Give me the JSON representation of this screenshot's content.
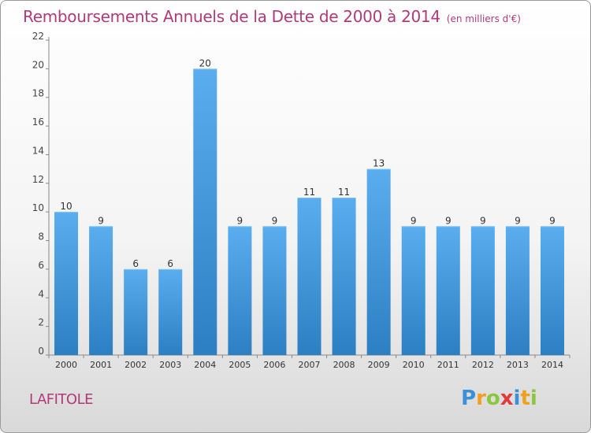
{
  "title": "Remboursements Annuels de la Dette de 2000 à 2014",
  "unit": "(en milliers d'€)",
  "town": "LAFITOLE",
  "logo": {
    "letters": [
      "P",
      "r",
      "o",
      "x",
      "i",
      "t",
      "i"
    ],
    "colors": [
      "#3d8fd8",
      "#f0a020",
      "#8cc63e",
      "#e03a3a",
      "#3d8fd8",
      "#f0a020",
      "#8cc63e"
    ]
  },
  "colors": {
    "bar_top": "#5aaef0",
    "bar_bottom": "#2c7fc2",
    "accent": "#b03a78"
  },
  "chart_data": {
    "type": "bar",
    "categories": [
      "2000",
      "2001",
      "2002",
      "2003",
      "2004",
      "2005",
      "2006",
      "2007",
      "2008",
      "2009",
      "2010",
      "2011",
      "2012",
      "2013",
      "2014"
    ],
    "values": [
      10,
      9,
      6,
      6,
      20,
      9,
      9,
      11,
      11,
      13,
      9,
      9,
      9,
      9,
      9
    ],
    "ylim": [
      0,
      22
    ],
    "yticks": [
      0,
      2,
      4,
      6,
      8,
      10,
      12,
      14,
      16,
      18,
      20,
      22
    ],
    "grid": false
  }
}
